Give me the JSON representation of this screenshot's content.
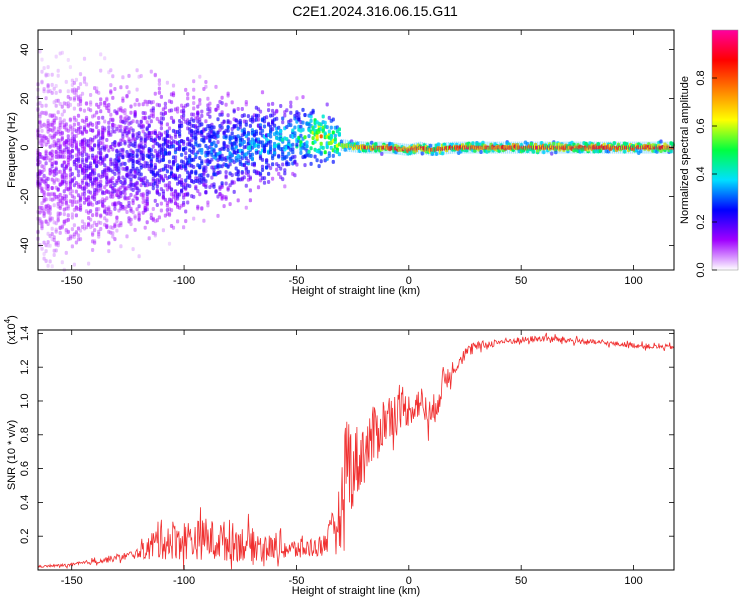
{
  "title": "C2E1.2024.316.06.15.G11",
  "chart_data": [
    {
      "type": "heatmap",
      "xlabel": "Height of straight line (km)",
      "ylabel": "Frequency (Hz)",
      "xlim": [
        -165,
        118
      ],
      "ylim": [
        -50,
        48
      ],
      "xticks": [
        -150,
        -100,
        -50,
        0,
        50,
        100
      ],
      "yticks": [
        -40,
        -20,
        0,
        20,
        40
      ],
      "colorbar": {
        "label": "Normalized spectral amplitude",
        "range": [
          0.0,
          1.0
        ],
        "ticks": [
          0.0,
          0.2,
          0.4,
          0.6,
          0.8
        ],
        "colors": [
          "#ffffff",
          "#a000ff",
          "#0000ff",
          "#00e0ff",
          "#00ff40",
          "#ffff00",
          "#ff8000",
          "#ff0000",
          "#ff00a0"
        ]
      },
      "ridge": {
        "x": [
          -160,
          -140,
          -120,
          -100,
          -80,
          -60,
          -45,
          -40,
          -35,
          -30,
          -20,
          -10,
          0,
          5,
          10,
          20,
          50,
          100,
          118
        ],
        "freq": [
          -8,
          -7,
          -5,
          -3,
          -1,
          2,
          4,
          5,
          3,
          1,
          0,
          0,
          -1,
          0,
          -1,
          0,
          0,
          0,
          0
        ],
        "amplitude": [
          0.15,
          0.2,
          0.25,
          0.3,
          0.35,
          0.4,
          0.5,
          0.75,
          0.6,
          0.65,
          0.85,
          0.9,
          0.85,
          0.9,
          0.85,
          0.9,
          0.9,
          0.9,
          0.9
        ]
      }
    },
    {
      "type": "line",
      "xlabel": "Height of straight line (km)",
      "ylabel": "SNR (10 * v/v)",
      "y_multiplier": "(x10",
      "y_multiplier_exp": "4",
      "xlim": [
        -165,
        118
      ],
      "ylim": [
        0,
        1.42
      ],
      "xticks": [
        -150,
        -100,
        -50,
        0,
        50,
        100
      ],
      "yticks": [
        0.2,
        0.4,
        0.6,
        0.8,
        1.0,
        1.2,
        1.4
      ],
      "series": [
        {
          "color": "#f03030",
          "x": [
            -165,
            -150,
            -140,
            -130,
            -120,
            -115,
            -110,
            -100,
            -90,
            -80,
            -70,
            -60,
            -50,
            -40,
            -35,
            -30,
            -28,
            -25,
            -20,
            -15,
            -10,
            -5,
            0,
            5,
            10,
            15,
            20,
            25,
            30,
            40,
            50,
            60,
            70,
            80,
            90,
            100,
            110,
            118
          ],
          "y": [
            0.02,
            0.03,
            0.05,
            0.07,
            0.1,
            0.14,
            0.18,
            0.18,
            0.18,
            0.17,
            0.15,
            0.13,
            0.12,
            0.14,
            0.2,
            0.35,
            0.7,
            0.6,
            0.7,
            0.8,
            0.9,
            0.95,
            0.95,
            1.0,
            0.9,
            1.1,
            1.2,
            1.28,
            1.32,
            1.35,
            1.36,
            1.37,
            1.36,
            1.35,
            1.34,
            1.33,
            1.32,
            1.32
          ],
          "noise": [
            0.005,
            0.01,
            0.015,
            0.02,
            0.03,
            0.08,
            0.12,
            0.12,
            0.12,
            0.12,
            0.1,
            0.07,
            0.06,
            0.06,
            0.1,
            0.2,
            0.3,
            0.25,
            0.2,
            0.18,
            0.15,
            0.12,
            0.1,
            0.1,
            0.1,
            0.1,
            0.05,
            0.04,
            0.03,
            0.02,
            0.02,
            0.02,
            0.02,
            0.015,
            0.015,
            0.015,
            0.015,
            0.015
          ]
        }
      ]
    }
  ]
}
